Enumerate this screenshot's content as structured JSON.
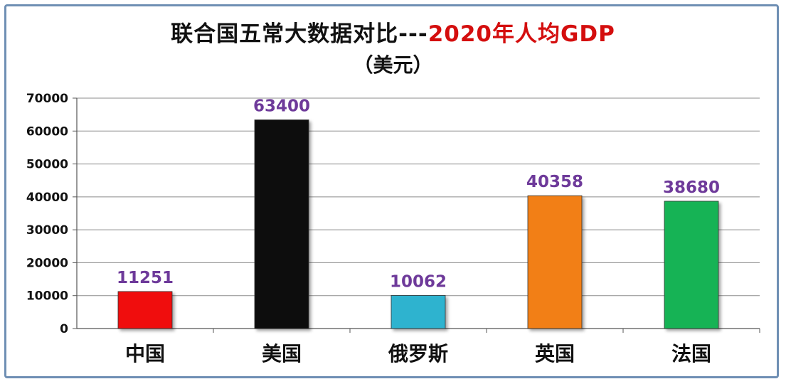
{
  "chart_data": {
    "type": "bar",
    "title_prefix": "联合国五常大数据对比---",
    "title_highlight": "2020年人均GDP",
    "subtitle": "（美元）",
    "categories": [
      "中国",
      "美国",
      "俄罗斯",
      "英国",
      "法国"
    ],
    "values": [
      11251,
      63400,
      10062,
      40358,
      38680
    ],
    "value_labels": [
      "11251",
      "63400",
      "10062",
      "40358",
      "38680"
    ],
    "bar_colors": [
      "#f00b0b",
      "#0d0d0d",
      "#2fb3cf",
      "#f27f12",
      "#14b354"
    ],
    "value_label_color": "#6e3a9a",
    "title_highlight_color": "#d40e0e",
    "ylim": [
      0,
      70000
    ],
    "yticks": [
      "0",
      "10000",
      "20000",
      "30000",
      "40000",
      "50000",
      "60000",
      "70000"
    ],
    "grid": true,
    "legend": "none"
  }
}
